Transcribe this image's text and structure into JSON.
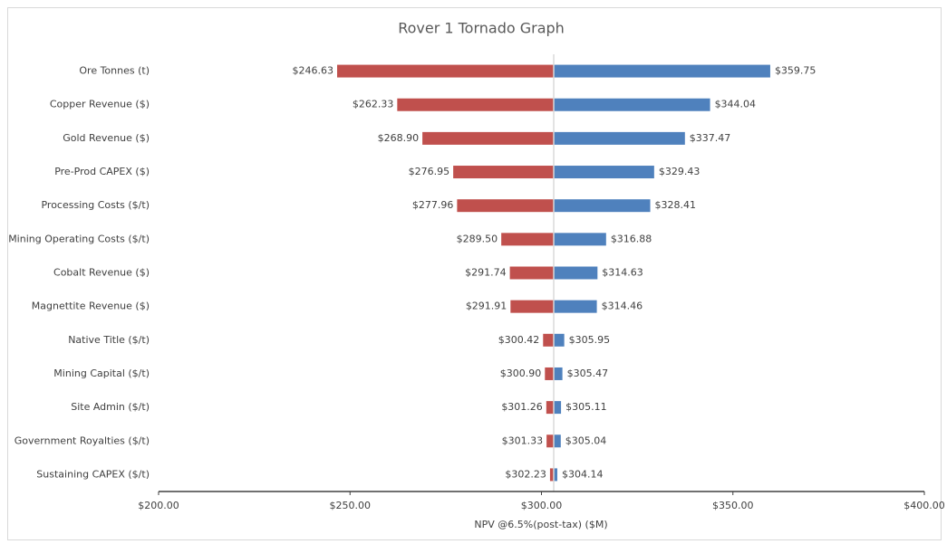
{
  "chart_data": {
    "type": "tornado",
    "title": "Rover 1 Tornado Graph",
    "x_label": "NPV @6.5%(post-tax) ($M)",
    "categories": [
      "Ore Tonnes (t)",
      "Copper Revenue ($)",
      "Gold Revenue ($)",
      "Pre-Prod CAPEX ($)",
      "Processing Costs ($/t)",
      "Mining Operating Costs ($/t)",
      "Cobalt Revenue ($)",
      "Magnettite Revenue ($)",
      "Native Title ($/t)",
      "Mining Capital ($/t)",
      "Site Admin ($/t)",
      "Government Royalties ($/t)",
      "Sustaining CAPEX ($/t)"
    ],
    "base_value": 303.2,
    "series": [
      {
        "name": "Low",
        "color": "#c0504d",
        "values": [
          246.63,
          262.33,
          268.9,
          276.95,
          277.96,
          289.5,
          291.74,
          291.91,
          300.42,
          300.9,
          301.26,
          301.33,
          302.23
        ],
        "value_labels": [
          "$246.63",
          "$262.33",
          "$268.90",
          "$276.95",
          "$277.96",
          "$289.50",
          "$291.74",
          "$291.91",
          "$300.42",
          "$300.90",
          "$301.26",
          "$301.33",
          "$302.23"
        ]
      },
      {
        "name": "High",
        "color": "#4f81bd",
        "values": [
          359.75,
          344.04,
          337.47,
          329.43,
          328.41,
          316.88,
          314.63,
          314.46,
          305.95,
          305.47,
          305.11,
          305.04,
          304.14
        ],
        "value_labels": [
          "$359.75",
          "$344.04",
          "$337.47",
          "$329.43",
          "$328.41",
          "$316.88",
          "$314.63",
          "$314.46",
          "$305.95",
          "$305.47",
          "$305.11",
          "$305.04",
          "$304.14"
        ]
      }
    ],
    "xlim": [
      200,
      400
    ],
    "xticks": [
      {
        "value": 200,
        "label": "$200.00"
      },
      {
        "value": 250,
        "label": "$250.00"
      },
      {
        "value": 300,
        "label": "$300.00"
      },
      {
        "value": 350,
        "label": "$350.00"
      },
      {
        "value": 400,
        "label": "$400.00"
      }
    ]
  }
}
